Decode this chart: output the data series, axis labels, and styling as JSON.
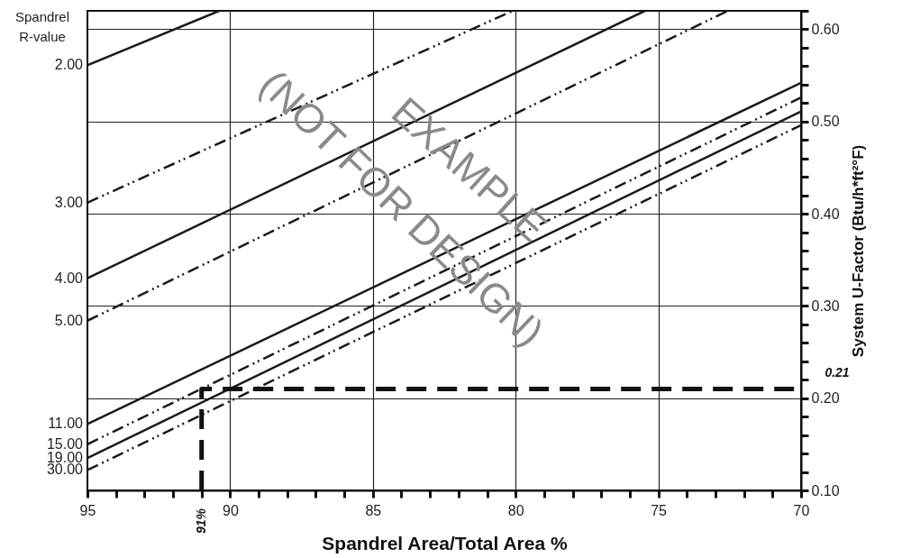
{
  "chart_data": {
    "type": "line",
    "xlabel": "Spandrel Area/Total Area %",
    "ylabel": "Spandrel R-value",
    "y2label": "System U-Factor (Btu/h*ft²°F)",
    "xlim": [
      95,
      70
    ],
    "xticks": [
      95,
      {
        "value": 94,
        "label": null
      },
      {
        "value": 93,
        "label": null
      },
      {
        "value": 92,
        "label": null
      },
      {
        "value": 91,
        "label": null
      },
      90,
      {
        "value": 89,
        "label": null
      },
      {
        "value": 88,
        "label": null
      },
      {
        "value": 87,
        "label": null
      },
      {
        "value": 86,
        "label": null
      },
      85,
      {
        "value": 84,
        "label": null
      },
      {
        "value": 83,
        "label": null
      },
      {
        "value": 82,
        "label": null
      },
      {
        "value": 81,
        "label": null
      },
      80,
      {
        "value": 79,
        "label": null
      },
      {
        "value": 78,
        "label": null
      },
      {
        "value": 77,
        "label": null
      },
      {
        "value": 76,
        "label": null
      },
      75,
      {
        "value": 74,
        "label": null
      },
      {
        "value": 73,
        "label": null
      },
      {
        "value": 72,
        "label": null
      },
      {
        "value": 71,
        "label": null
      },
      70
    ],
    "y2lim": [
      0.1,
      0.62
    ],
    "y2ticks": [
      {
        "value": 0.1,
        "label": "0.10"
      },
      {
        "value": 0.12,
        "label": null
      },
      {
        "value": 0.14,
        "label": null
      },
      {
        "value": 0.16,
        "label": null
      },
      {
        "value": 0.18,
        "label": null
      },
      {
        "value": 0.2,
        "label": "0.20"
      },
      {
        "value": 0.22,
        "label": null
      },
      {
        "value": 0.24,
        "label": null
      },
      {
        "value": 0.26,
        "label": null
      },
      {
        "value": 0.28,
        "label": null
      },
      {
        "value": 0.3,
        "label": "0.30"
      },
      {
        "value": 0.32,
        "label": null
      },
      {
        "value": 0.34,
        "label": null
      },
      {
        "value": 0.36,
        "label": null
      },
      {
        "value": 0.38,
        "label": null
      },
      {
        "value": 0.4,
        "label": "0.40"
      },
      {
        "value": 0.42,
        "label": null
      },
      {
        "value": 0.44,
        "label": null
      },
      {
        "value": 0.46,
        "label": null
      },
      {
        "value": 0.48,
        "label": null
      },
      {
        "value": 0.5,
        "label": "0.50"
      },
      {
        "value": 0.52,
        "label": null
      },
      {
        "value": 0.54,
        "label": null
      },
      {
        "value": 0.56,
        "label": null
      },
      {
        "value": 0.58,
        "label": null
      },
      {
        "value": 0.6,
        "label": "0.60"
      },
      {
        "value": 0.62,
        "label": null
      }
    ],
    "grid": true,
    "annotations": [
      "(NOT FOR DESIGN)",
      "EXAMPLE",
      "0.21",
      "91%"
    ],
    "series": [
      {
        "name": "2.00",
        "color": "#1a1a1a",
        "axis": "y2",
        "line_style": "solid",
        "x": [
          95,
          90.38
        ],
        "values": [
          0.561,
          0.62
        ]
      },
      {
        "name": "3.00",
        "color": "#1a1a1a",
        "axis": "y2",
        "line_style": "dotted",
        "x": [
          95,
          80.1
        ],
        "values": [
          0.412,
          0.62
        ]
      },
      {
        "name": "4.00",
        "color": "#1a1a1a",
        "axis": "y2",
        "line_style": "solid",
        "x": [
          95,
          75.47
        ],
        "values": [
          0.33,
          0.62
        ]
      },
      {
        "name": "5.00",
        "color": "#1a1a1a",
        "axis": "y2",
        "line_style": "dotted",
        "x": [
          95,
          72.57
        ],
        "values": [
          0.284,
          0.62
        ]
      },
      {
        "name": "11.00",
        "color": "#1a1a1a",
        "axis": "y2",
        "line_style": "solid",
        "x": [
          95,
          70
        ],
        "values": [
          0.172,
          0.542
        ]
      },
      {
        "name": "15.00",
        "color": "#1a1a1a",
        "axis": "y2",
        "line_style": "dotted",
        "x": [
          95,
          70
        ],
        "values": [
          0.15,
          0.526
        ]
      },
      {
        "name": "19.00",
        "color": "#1a1a1a",
        "axis": "y2",
        "line_style": "solid",
        "x": [
          95,
          70
        ],
        "values": [
          0.135,
          0.511
        ]
      },
      {
        "name": "30.00",
        "color": "#1a1a1a",
        "axis": "y2",
        "line_style": "dotted",
        "x": [
          95,
          70
        ],
        "values": [
          0.122,
          0.496
        ]
      },
      {
        "color": "#111111",
        "axis": "y2",
        "line_style": "dashed",
        "x": [
          91,
          91,
          70
        ],
        "values": [
          0.1,
          0.21,
          0.21
        ]
      }
    ]
  }
}
